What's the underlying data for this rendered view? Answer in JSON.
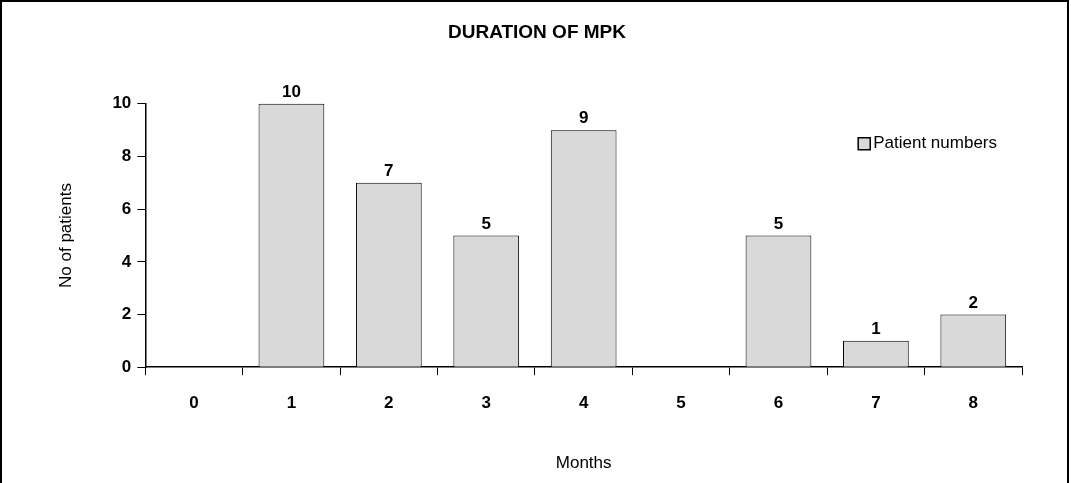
{
  "chart_data": {
    "type": "bar",
    "title": "DURATION OF MPK",
    "xlabel": "Months",
    "ylabel": "No of patients",
    "categories": [
      "0",
      "1",
      "2",
      "3",
      "4",
      "5",
      "6",
      "7",
      "8"
    ],
    "series": [
      {
        "name": "Patient numbers",
        "color": "#d9d9d9",
        "values": [
          0,
          10,
          7,
          5,
          9,
          0,
          5,
          1,
          2
        ],
        "value_labels": [
          null,
          "10",
          "7",
          "5",
          "9",
          null,
          "5",
          "1",
          "2"
        ]
      }
    ],
    "ylim": [
      0,
      10
    ],
    "yticks": [
      0,
      2,
      4,
      6,
      8,
      10
    ],
    "grid": false,
    "legend": "top right"
  }
}
